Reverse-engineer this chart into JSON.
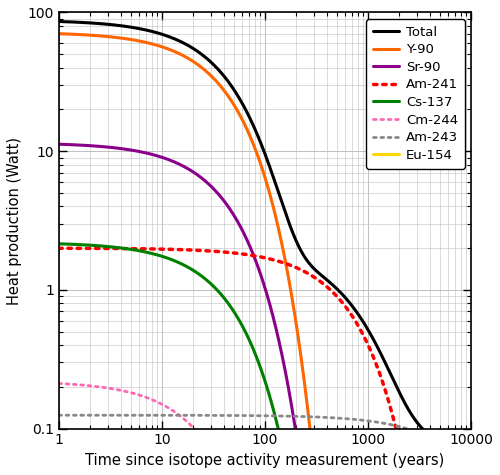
{
  "title": "",
  "xlabel": "Time since isotope activity measurement (years)",
  "ylabel": "Heat production (Watt)",
  "xlim": [
    1,
    10000
  ],
  "ylim": [
    0.1,
    100
  ],
  "series": [
    {
      "name": "Total",
      "color": "#000000",
      "linestyle": "solid",
      "linewidth": 2.2,
      "t0_val": 93.5,
      "half_life": 28.8,
      "type": "total"
    },
    {
      "name": "Y-90",
      "color": "#FF6600",
      "linestyle": "solid",
      "linewidth": 2.2,
      "t0_val": 72.0,
      "half_life": 28.8,
      "type": "decay_sr90eq"
    },
    {
      "name": "Sr-90",
      "color": "#8B008B",
      "linestyle": "solid",
      "linewidth": 2.2,
      "t0_val": 11.5,
      "half_life": 28.8,
      "type": "decay"
    },
    {
      "name": "Am-241",
      "color": "#FF0000",
      "linestyle": "dotted",
      "linewidth": 2.5,
      "t0_val": 2.0,
      "half_life": 432.0,
      "type": "decay"
    },
    {
      "name": "Cs-137",
      "color": "#008000",
      "linestyle": "solid",
      "linewidth": 2.2,
      "t0_val": 2.2,
      "half_life": 30.17,
      "type": "decay"
    },
    {
      "name": "Cm-244",
      "color": "#FF69B4",
      "linestyle": "dotted",
      "linewidth": 2.0,
      "t0_val": 0.22,
      "half_life": 18.1,
      "type": "decay"
    },
    {
      "name": "Am-243",
      "color": "#888888",
      "linestyle": "dotted",
      "linewidth": 2.0,
      "t0_val": 0.125,
      "half_life": 7370.0,
      "type": "decay"
    },
    {
      "name": "Eu-154",
      "color": "#FFD700",
      "linestyle": "solid",
      "linewidth": 2.2,
      "t0_val": 0.105,
      "half_life": 8.593,
      "type": "decay"
    }
  ],
  "background_color": "#ffffff",
  "grid_color": "#c0c0c0",
  "legend_fontsize": 9.5,
  "axis_fontsize": 10.5
}
